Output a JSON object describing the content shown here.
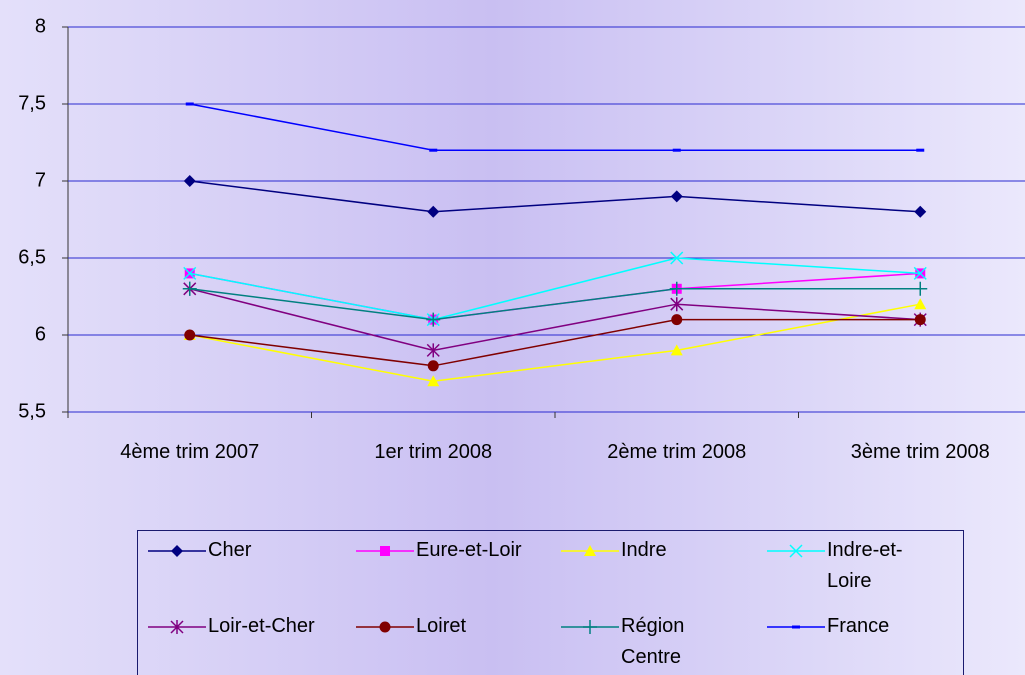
{
  "chart_data": {
    "type": "line",
    "categories": [
      "4ème trim 2007",
      "1er trim 2008",
      "2ème trim 2008",
      "3ème trim 2008"
    ],
    "ylim": [
      5.5,
      8
    ],
    "yticks": [
      {
        "value": 5.5,
        "label": "5,5"
      },
      6,
      {
        "value": 6.5,
        "label": "6,5"
      },
      7,
      {
        "value": 7.5,
        "label": "7,5"
      },
      8
    ],
    "grid": true,
    "series": [
      {
        "name": "Cher",
        "color": "#000080",
        "marker": "diamond",
        "values": [
          7.0,
          6.8,
          6.9,
          6.8
        ]
      },
      {
        "name": "Eure-et-Loir",
        "color": "#ff00ff",
        "marker": "square",
        "values": [
          6.4,
          6.1,
          6.3,
          6.4
        ]
      },
      {
        "name": "Indre",
        "color": "#ffff00",
        "marker": "triangle",
        "values": [
          6.0,
          5.7,
          5.9,
          6.2
        ]
      },
      {
        "name": "Indre-et-Loire",
        "color": "#00ffff",
        "marker": "x",
        "values": [
          6.4,
          6.1,
          6.5,
          6.4
        ]
      },
      {
        "name": "Loir-et-Cher",
        "color": "#800080",
        "marker": "star",
        "values": [
          6.3,
          5.9,
          6.2,
          6.1
        ]
      },
      {
        "name": "Loiret",
        "color": "#800000",
        "marker": "circle",
        "values": [
          6.0,
          5.8,
          6.1,
          6.1
        ]
      },
      {
        "name": "Région Centre",
        "color": "#008080",
        "marker": "plus",
        "values": [
          6.3,
          6.1,
          6.3,
          6.3
        ]
      },
      {
        "name": "France",
        "color": "#0000ff",
        "marker": "dash",
        "values": [
          7.5,
          7.2,
          7.2,
          7.2
        ]
      }
    ]
  }
}
